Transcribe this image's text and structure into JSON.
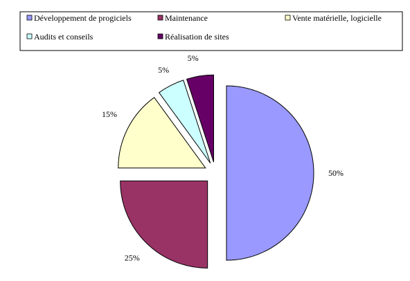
{
  "chart_data": {
    "type": "pie",
    "title": "",
    "slices": [
      {
        "label": "Développement de progiciels",
        "value": 50,
        "percent_label": "50%",
        "color": "#9999ff"
      },
      {
        "label": "Maintenance",
        "value": 25,
        "percent_label": "25%",
        "color": "#993366"
      },
      {
        "label": "Vente matérielle, logicielle",
        "value": 15,
        "percent_label": "15%",
        "color": "#ffffcc"
      },
      {
        "label": "Audits et conseils",
        "value": 5,
        "percent_label": "5%",
        "color": "#ccffff"
      },
      {
        "label": "Réalisation de sites",
        "value": 5,
        "percent_label": "5%",
        "color": "#660066"
      }
    ],
    "legend_position": "top",
    "exploded": true,
    "start_angle": "12 o'clock, clockwise"
  }
}
